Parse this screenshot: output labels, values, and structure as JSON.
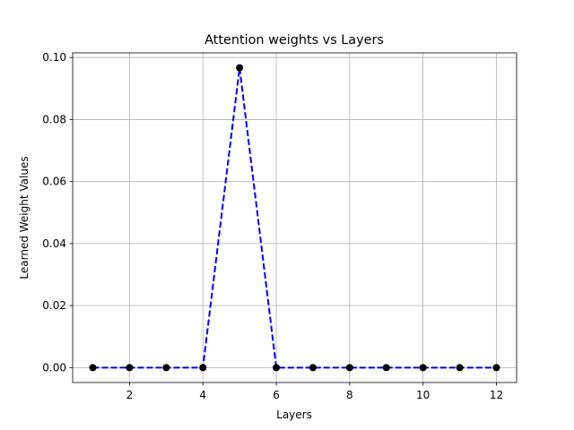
{
  "chart_data": {
    "type": "line",
    "title": "Attention weights vs Layers",
    "x_label": "Layers",
    "y_label": "Learned Weight Values",
    "x": [
      1,
      2,
      3,
      4,
      5,
      6,
      7,
      8,
      9,
      10,
      11,
      12
    ],
    "series": [
      {
        "values": [
          0,
          0,
          0,
          0,
          0.0967,
          0,
          0,
          0,
          0,
          0,
          0,
          0
        ],
        "color": "#0000ff",
        "marker_color": "#000000",
        "linestyle": "dashed"
      }
    ],
    "xlim": [
      0.45,
      12.55
    ],
    "xticks": [
      2,
      4,
      6,
      8,
      10,
      12
    ],
    "ylim": [
      -0.0048,
      0.1015
    ],
    "yticks": [
      {
        "value": 0,
        "label": "0.00"
      },
      {
        "value": 0.02,
        "label": "0.02"
      },
      {
        "value": 0.04,
        "label": "0.04"
      },
      {
        "value": 0.06,
        "label": "0.06"
      },
      {
        "value": 0.08,
        "label": "0.08"
      },
      {
        "value": 0.1,
        "label": "0.10"
      }
    ],
    "grid": true
  }
}
